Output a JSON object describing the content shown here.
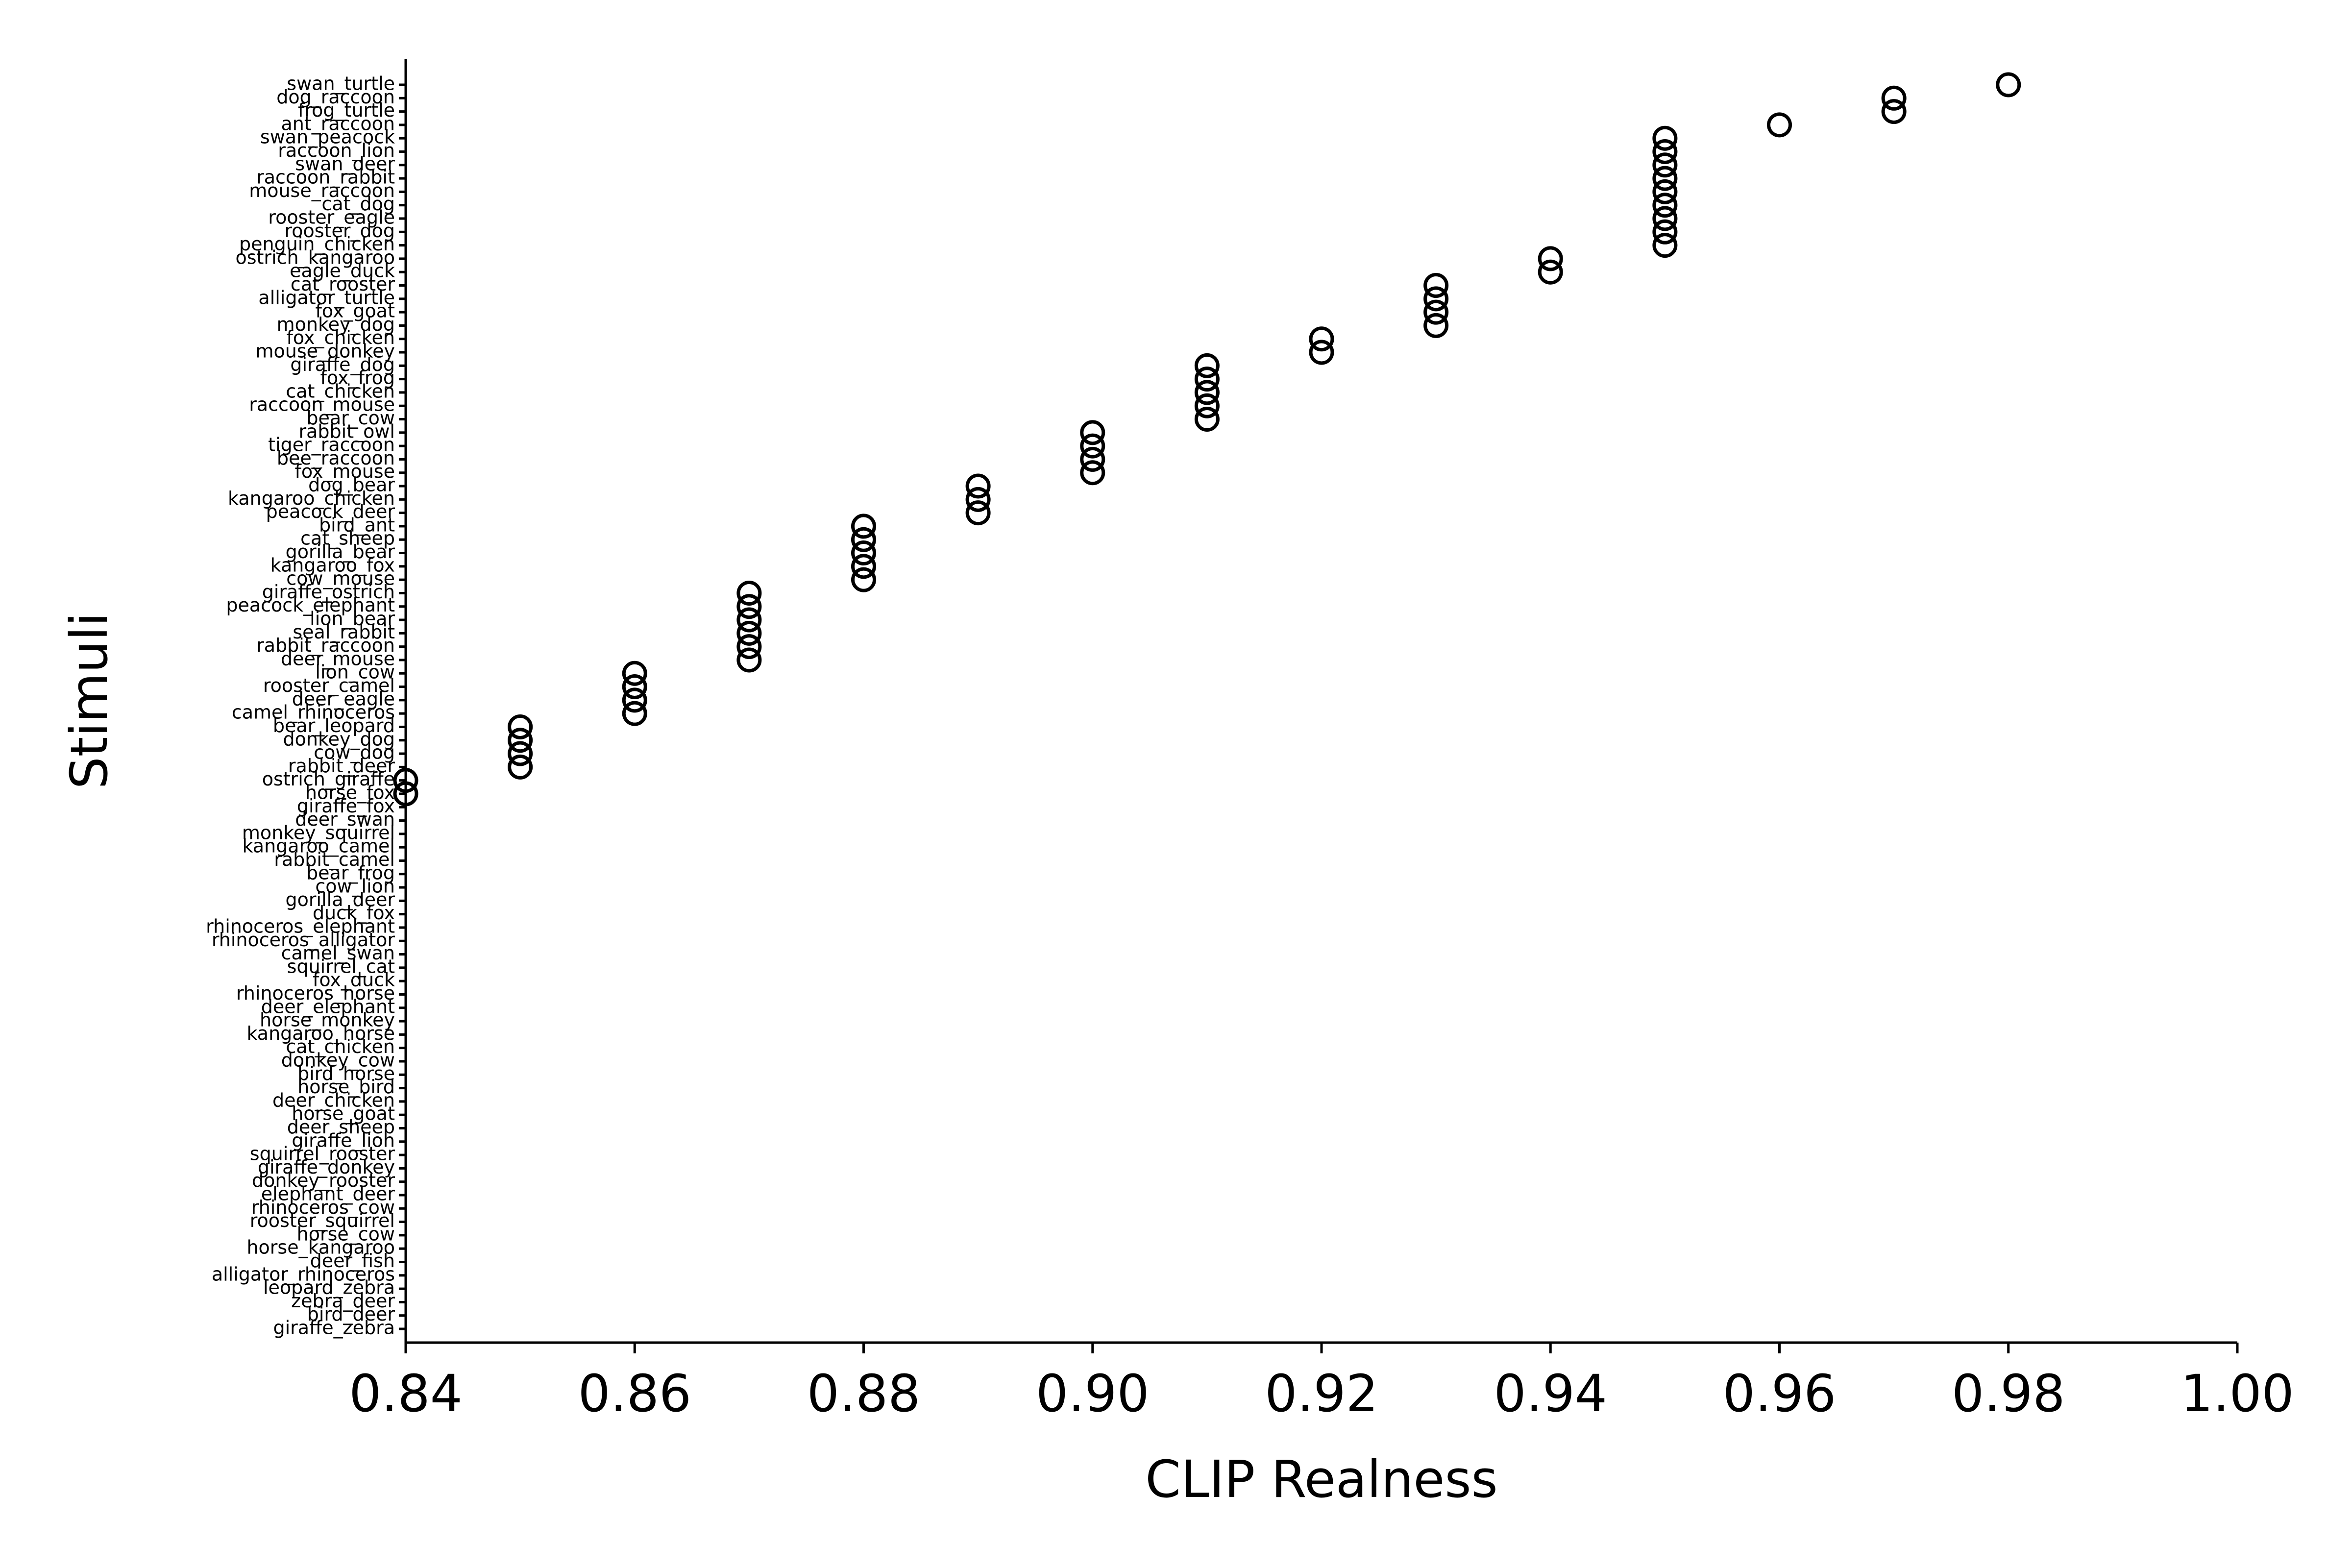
{
  "chart_data": {
    "type": "scatter",
    "title": "",
    "xlabel": "CLIP Realness",
    "ylabel": "Stimuli",
    "xlim": [
      0.84,
      1.0
    ],
    "xticks": [
      "0.84",
      "0.86",
      "0.88",
      "0.90",
      "0.92",
      "0.94",
      "0.96",
      "0.98",
      "1.00"
    ],
    "grid": false,
    "marker": "open-circle",
    "colors": {
      "marker": "#000000",
      "axes": "#000000",
      "text": "#000000"
    },
    "points": [
      {
        "label": "swan_turtle",
        "value": 0.98
      },
      {
        "label": "dog_raccoon",
        "value": 0.97
      },
      {
        "label": "frog_turtle",
        "value": 0.97
      },
      {
        "label": "ant_raccoon",
        "value": 0.96
      },
      {
        "label": "swan_peacock",
        "value": 0.95
      },
      {
        "label": "raccoon_lion",
        "value": 0.95
      },
      {
        "label": "swan_deer",
        "value": 0.95
      },
      {
        "label": "raccoon_rabbit",
        "value": 0.95
      },
      {
        "label": "mouse_raccoon",
        "value": 0.95
      },
      {
        "label": "cat_dog",
        "value": 0.95
      },
      {
        "label": "rooster_eagle",
        "value": 0.95
      },
      {
        "label": "rooster_dog",
        "value": 0.95
      },
      {
        "label": "penguin_chicken",
        "value": 0.95
      },
      {
        "label": "ostrich_kangaroo",
        "value": 0.94
      },
      {
        "label": "eagle_duck",
        "value": 0.94
      },
      {
        "label": "cat_rooster",
        "value": 0.93
      },
      {
        "label": "alligator_turtle",
        "value": 0.93
      },
      {
        "label": "fox_goat",
        "value": 0.93
      },
      {
        "label": "monkey_dog",
        "value": 0.93
      },
      {
        "label": "fox_chicken",
        "value": 0.92
      },
      {
        "label": "mouse_donkey",
        "value": 0.92
      },
      {
        "label": "giraffe_dog",
        "value": 0.91
      },
      {
        "label": "fox_frog",
        "value": 0.91
      },
      {
        "label": "cat_chicken",
        "value": 0.91
      },
      {
        "label": "raccoon_mouse",
        "value": 0.91
      },
      {
        "label": "bear_cow",
        "value": 0.91
      },
      {
        "label": "rabbit_owl",
        "value": 0.9
      },
      {
        "label": "tiger_raccoon",
        "value": 0.9
      },
      {
        "label": "bee_raccoon",
        "value": 0.9
      },
      {
        "label": "fox_mouse",
        "value": 0.9
      },
      {
        "label": "dog_bear",
        "value": 0.89
      },
      {
        "label": "kangaroo_chicken",
        "value": 0.89
      },
      {
        "label": "peacock_deer",
        "value": 0.89
      },
      {
        "label": "bird_ant",
        "value": 0.88
      },
      {
        "label": "cat_sheep",
        "value": 0.88
      },
      {
        "label": "gorilla_bear",
        "value": 0.88
      },
      {
        "label": "kangaroo_fox",
        "value": 0.88
      },
      {
        "label": "cow_mouse",
        "value": 0.88
      },
      {
        "label": "giraffe_ostrich",
        "value": 0.87
      },
      {
        "label": "peacock_elephant",
        "value": 0.87
      },
      {
        "label": "lion_bear",
        "value": 0.87
      },
      {
        "label": "seal_rabbit",
        "value": 0.87
      },
      {
        "label": "rabbit_raccoon",
        "value": 0.87
      },
      {
        "label": "deer_mouse",
        "value": 0.87
      },
      {
        "label": "lion_cow",
        "value": 0.86
      },
      {
        "label": "rooster_camel",
        "value": 0.86
      },
      {
        "label": "deer_eagle",
        "value": 0.86
      },
      {
        "label": "camel_rhinoceros",
        "value": 0.86
      },
      {
        "label": "bear_leopard",
        "value": 0.85
      },
      {
        "label": "donkey_dog",
        "value": 0.85
      },
      {
        "label": "cow_dog",
        "value": 0.85
      },
      {
        "label": "rabbit_deer",
        "value": 0.85
      },
      {
        "label": "ostrich_giraffe",
        "value": 0.84
      },
      {
        "label": "horse_fox",
        "value": 0.84
      },
      {
        "label": "giraffe_fox",
        "value": null
      },
      {
        "label": "deer_swan",
        "value": null
      },
      {
        "label": "monkey_squirrel",
        "value": null
      },
      {
        "label": "kangaroo_camel",
        "value": null
      },
      {
        "label": "rabbit_camel",
        "value": null
      },
      {
        "label": "bear_frog",
        "value": null
      },
      {
        "label": "cow_lion",
        "value": null
      },
      {
        "label": "gorilla_deer",
        "value": null
      },
      {
        "label": "duck_fox",
        "value": null
      },
      {
        "label": "rhinoceros_elephant",
        "value": null
      },
      {
        "label": "rhinoceros_alligator",
        "value": null
      },
      {
        "label": "camel_swan",
        "value": null
      },
      {
        "label": "squirrel_cat",
        "value": null
      },
      {
        "label": "fox_duck",
        "value": null
      },
      {
        "label": "rhinoceros_horse",
        "value": null
      },
      {
        "label": "deer_elephant",
        "value": null
      },
      {
        "label": "horse_monkey",
        "value": null
      },
      {
        "label": "kangaroo_horse",
        "value": null
      },
      {
        "label": "cat_chicken",
        "value": null
      },
      {
        "label": "donkey_cow",
        "value": null
      },
      {
        "label": "bird_horse",
        "value": null
      },
      {
        "label": "horse_bird",
        "value": null
      },
      {
        "label": "deer_chicken",
        "value": null
      },
      {
        "label": "horse_goat",
        "value": null
      },
      {
        "label": "deer_sheep",
        "value": null
      },
      {
        "label": "giraffe_lion",
        "value": null
      },
      {
        "label": "squirrel_rooster",
        "value": null
      },
      {
        "label": "giraffe_donkey",
        "value": null
      },
      {
        "label": "donkey_rooster",
        "value": null
      },
      {
        "label": "elephant_deer",
        "value": null
      },
      {
        "label": "rhinoceros_cow",
        "value": null
      },
      {
        "label": "rooster_squirrel",
        "value": null
      },
      {
        "label": "horse_cow",
        "value": null
      },
      {
        "label": "horse_kangaroo",
        "value": null
      },
      {
        "label": "deer_fish",
        "value": null
      },
      {
        "label": "alligator_rhinoceros",
        "value": null
      },
      {
        "label": "leopard_zebra",
        "value": null
      },
      {
        "label": "zebra_deer",
        "value": null
      },
      {
        "label": "bird_deer",
        "value": null
      },
      {
        "label": "giraffe_zebra",
        "value": null
      }
    ]
  }
}
